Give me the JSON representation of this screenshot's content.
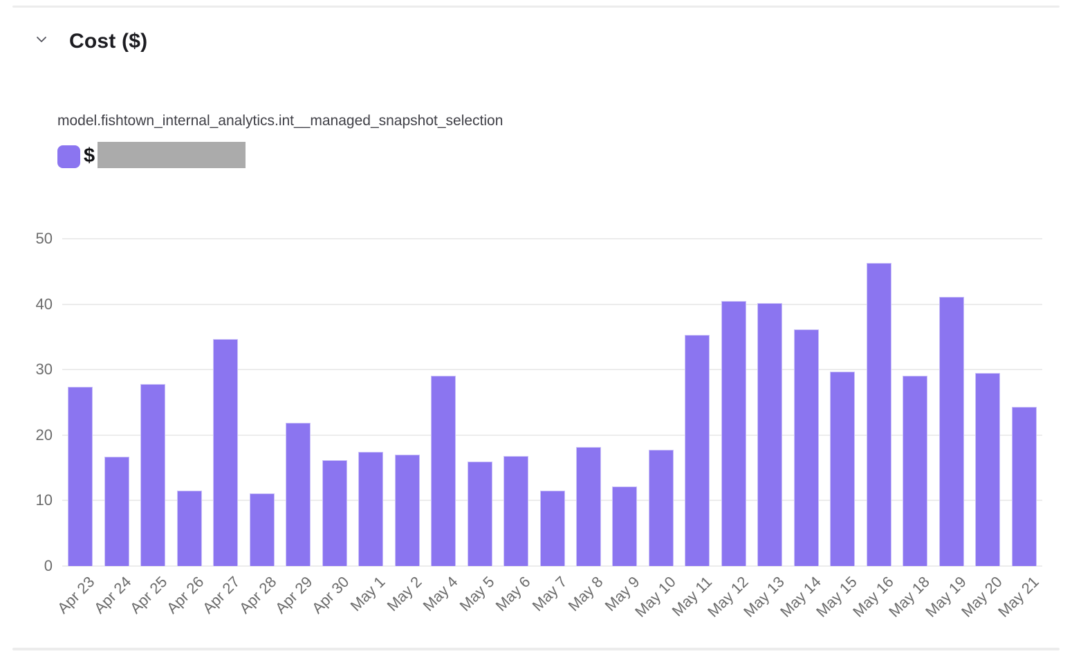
{
  "panel": {
    "title": "Cost ($)",
    "collapse_icon": "chevron-down-icon"
  },
  "chart": {
    "model_label": "model.fishtown_internal_analytics.int__managed_snapshot_selection",
    "legend": {
      "prefix": "$",
      "value_hidden": true
    }
  },
  "colors": {
    "series": "#8B75F0",
    "grid": "#ECECEC",
    "axis_label": "#6B6B6B",
    "redaction": "#ABABAB",
    "divider": "#ECECEC",
    "title_text": "#1C1C21",
    "model_text": "#3F3F46"
  },
  "chart_data": {
    "type": "bar",
    "title": "Cost ($)",
    "series_name": "model.fishtown_internal_analytics.int__managed_snapshot_selection",
    "categories": [
      "Apr 23",
      "Apr 24",
      "Apr 25",
      "Apr 26",
      "Apr 27",
      "Apr 28",
      "Apr 29",
      "Apr 30",
      "May 1",
      "May 2",
      "May 4",
      "May 5",
      "May 6",
      "May 7",
      "May 8",
      "May 9",
      "May 10",
      "May 11",
      "May 12",
      "May 13",
      "May 14",
      "May 15",
      "May 16",
      "May 18",
      "May 19",
      "May 20",
      "May 21"
    ],
    "values": [
      27.4,
      16.7,
      27.8,
      11.5,
      34.7,
      11.1,
      21.9,
      16.2,
      17.4,
      17.0,
      29.1,
      16.0,
      16.8,
      11.5,
      18.2,
      12.2,
      17.8,
      35.3,
      40.5,
      40.2,
      36.2,
      29.7,
      46.3,
      29.1,
      41.1,
      29.5,
      24.3
    ],
    "xlabel": "",
    "ylabel": "",
    "ylim": [
      0,
      50
    ],
    "yticks": [
      0,
      10,
      20,
      30,
      40,
      50
    ],
    "grid": true,
    "legend_position": "top-left",
    "series_color": "#8B75F0",
    "x_tick_rotation": -45
  }
}
